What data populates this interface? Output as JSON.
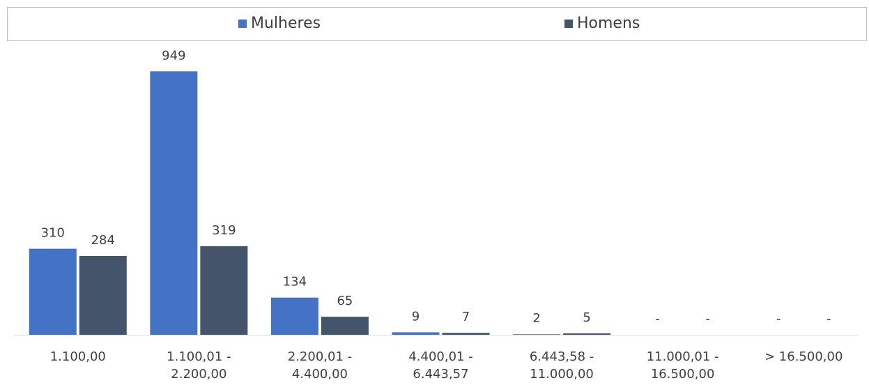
{
  "chart_data": {
    "type": "bar",
    "categories": [
      "1.100,00",
      "1.100,01 -\n2.200,00",
      "2.200,01 -\n4.400,00",
      "4.400,01 -\n6.443,57",
      "6.443,58 -\n11.000,00",
      "11.000,01 -\n16.500,00",
      "> 16.500,00"
    ],
    "series": [
      {
        "name": "Mulheres",
        "color": "#4472c4",
        "values": [
          310,
          949,
          134,
          9,
          2,
          0,
          0
        ],
        "value_labels": [
          "310",
          "949",
          "134",
          "9",
          "2",
          "-",
          "-"
        ]
      },
      {
        "name": "Homens",
        "color": "#44546a",
        "values": [
          284,
          319,
          65,
          7,
          5,
          0,
          0
        ],
        "value_labels": [
          "284",
          "319",
          "65",
          "7",
          "5",
          "-",
          "-"
        ]
      }
    ],
    "ylim": [
      0,
      1000
    ],
    "legend": "top"
  }
}
